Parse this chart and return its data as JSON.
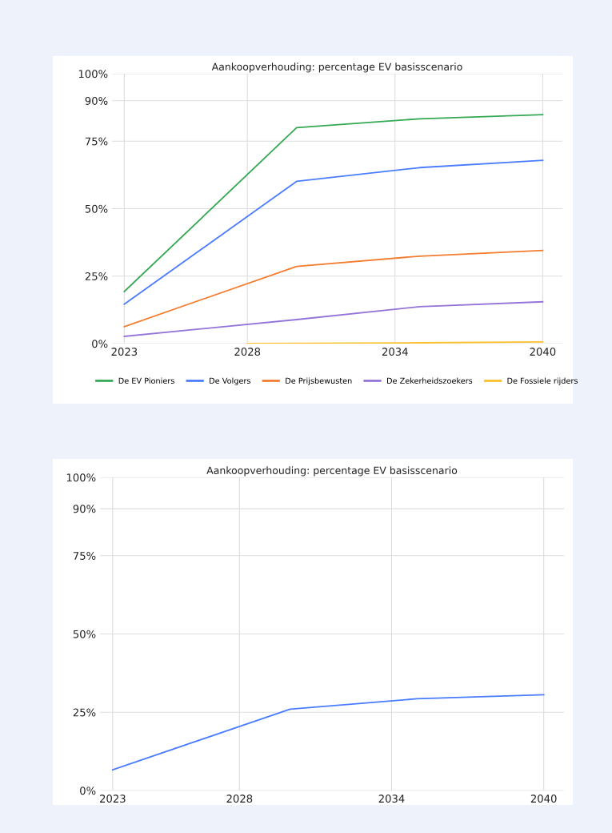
{
  "chart_data": [
    {
      "type": "line",
      "title": "Aankoopverhouding: percentage EV basisscenario",
      "x": [
        2023,
        2030,
        2035,
        2040
      ],
      "series": [
        {
          "name": "De EV Pioniers",
          "color": "#34a853",
          "values": [
            19.3,
            80,
            83.3,
            84.8
          ]
        },
        {
          "name": "De Volgers",
          "color": "#4a7cff",
          "values": [
            14.6,
            60.1,
            65.2,
            67.9
          ]
        },
        {
          "name": "De Prijsbewusten",
          "color": "#f47c30",
          "values": [
            6.3,
            28.6,
            32.4,
            34.5
          ]
        },
        {
          "name": "De Zekerheidszoekers",
          "color": "#9474d8",
          "values": [
            2.7,
            8.9,
            13.7,
            15.5
          ]
        },
        {
          "name": "De Fossiele rijders",
          "color": "#fbc02d",
          "x": [
            2028,
            2030,
            2035,
            2040
          ],
          "values": [
            0,
            0.1,
            0.3,
            0.6
          ]
        }
      ],
      "xlim": [
        2022.5,
        2040.8
      ],
      "xticks": [
        2023,
        2028,
        2034,
        2040
      ],
      "ylim": [
        0,
        100
      ],
      "yticks": [
        {
          "value": 0,
          "label": "0%"
        },
        {
          "value": 25,
          "label": "25%"
        },
        {
          "value": 50,
          "label": "50%"
        },
        {
          "value": 75,
          "label": "75%"
        },
        {
          "value": 90,
          "label": "90%"
        },
        {
          "value": 100,
          "label": "100%"
        }
      ],
      "grid": true,
      "legend": "bottom",
      "marker": "none",
      "line_style": "solid"
    },
    {
      "type": "line",
      "title": "Aankoopverhouding: percentage EV basisscenario",
      "x": [
        2023,
        2030,
        2035,
        2040
      ],
      "series": [
        {
          "color": "#4a7cff",
          "values": [
            6.6,
            26.0,
            29.3,
            30.6
          ]
        }
      ],
      "xlim": [
        2022.5,
        2040.8
      ],
      "xticks": [
        2023,
        2028,
        2034,
        2040
      ],
      "ylim": [
        0,
        100
      ],
      "yticks": [
        {
          "value": 0,
          "label": "0%"
        },
        {
          "value": 25,
          "label": "25%"
        },
        {
          "value": 50,
          "label": "50%"
        },
        {
          "value": 75,
          "label": "75%"
        },
        {
          "value": 90,
          "label": "90%"
        },
        {
          "value": 100,
          "label": "100%"
        }
      ],
      "grid": true,
      "marker": "none",
      "line_style": "solid"
    }
  ]
}
